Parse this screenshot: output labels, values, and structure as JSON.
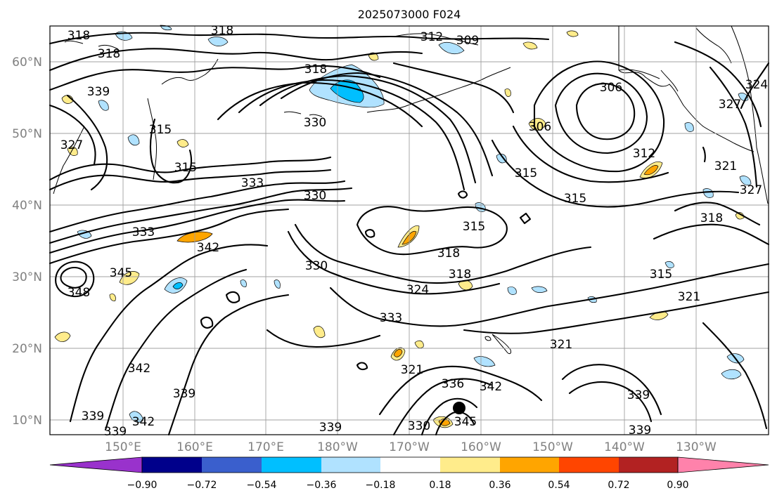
{
  "title": "2025073000 F024",
  "lat_labels": [
    "60°N",
    "50°N",
    "40°N",
    "30°N",
    "20°N",
    "10°N"
  ],
  "lon_labels": [
    "150°E",
    "160°E",
    "170°E",
    "180°W",
    "170°W",
    "160°W",
    "150°W",
    "140°W",
    "130°W"
  ],
  "colorbar": {
    "tick_labels": [
      "−0.90",
      "−0.72",
      "−0.54",
      "−0.36",
      "−0.18",
      "0.18",
      "0.36",
      "0.54",
      "0.72",
      "0.90"
    ],
    "colors": [
      "#9932cc",
      "#00008b",
      "#3a5fcd",
      "#00bfff",
      "#b0e2ff",
      "#ffffff",
      "#ffec8b",
      "#ffa500",
      "#ff4500",
      "#b22222",
      "#ff82ab"
    ]
  },
  "contour_labels": [
    "318",
    "318",
    "318",
    "312",
    "309",
    "306",
    "324",
    "327",
    "318",
    "339",
    "330",
    "315",
    "327",
    "333",
    "330",
    "315",
    "306",
    "312",
    "315",
    "315",
    "321",
    "327",
    "318",
    "333",
    "342",
    "315",
    "318",
    "315",
    "345",
    "348",
    "330",
    "318",
    "324",
    "321",
    "333",
    "321",
    "321",
    "342",
    "339",
    "339",
    "336",
    "342",
    "345",
    "339",
    "339",
    "339",
    "342",
    "339",
    "330"
  ],
  "colors": {
    "negative_light": "#b0e2ff",
    "negative_mid": "#00bfff",
    "positive_light": "#ffec8b",
    "positive_mid": "#ffa500",
    "contour": "#000000",
    "grid": "#a0a0a0"
  },
  "storm_marker": "filled-circle"
}
